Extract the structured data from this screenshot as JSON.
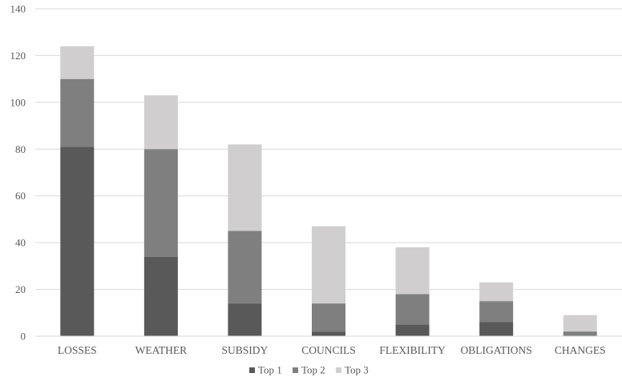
{
  "chart_data": {
    "type": "bar",
    "stacked": true,
    "categories": [
      "LOSSES",
      "WEATHER",
      "SUBSIDY",
      "COUNCILS",
      "FLEXIBILITY",
      "OBLIGATIONS",
      "CHANGES"
    ],
    "series": [
      {
        "name": "Top 1",
        "color": "#595959",
        "values": [
          81,
          34,
          14,
          2,
          5,
          6,
          0
        ]
      },
      {
        "name": "Top 2",
        "color": "#7f7f7f",
        "values": [
          29,
          46,
          31,
          12,
          13,
          9,
          2
        ]
      },
      {
        "name": "Top 3",
        "color": "#d0cece",
        "values": [
          14,
          23,
          37,
          33,
          20,
          8,
          7
        ]
      }
    ],
    "ylim": [
      0,
      140
    ],
    "yticks": [
      "0",
      "20",
      "40",
      "60",
      "80",
      "100",
      "120",
      "140"
    ],
    "grid": true,
    "legend_position": "bottom"
  }
}
